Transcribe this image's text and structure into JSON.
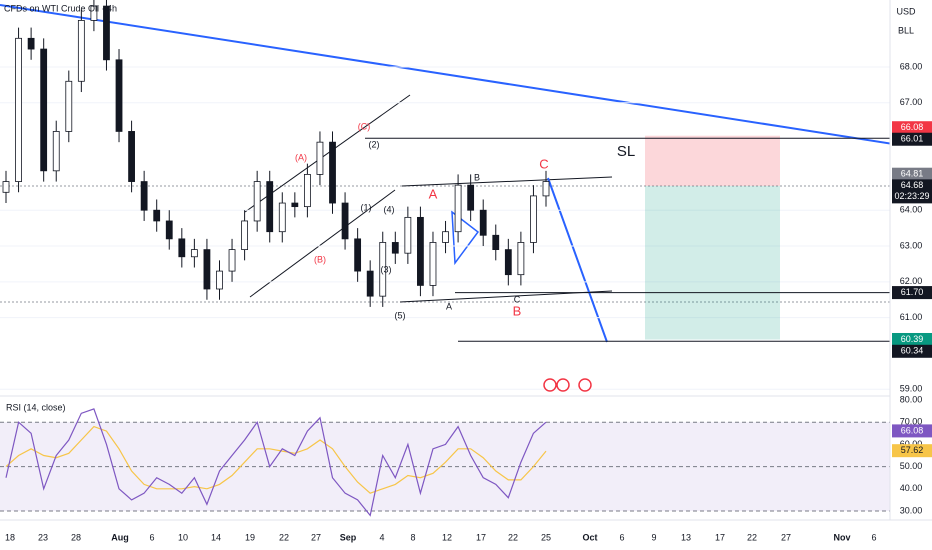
{
  "chart_data": [
    {
      "type": "candlestick",
      "title": "CFDs on WTI Crude Oil · 4h",
      "currency": "USD",
      "unit": "BLL",
      "open": [
        64.5,
        64.8,
        68.8,
        68.5,
        65.1,
        66.2,
        67.6,
        69.3,
        69.7,
        68.2,
        66.2,
        64.8,
        64.0,
        63.7,
        63.2,
        62.7,
        62.9,
        61.8,
        62.3,
        62.9,
        63.7,
        64.8,
        63.4,
        64.2,
        64.1,
        65.0,
        65.9,
        64.2,
        63.2,
        62.3,
        61.6,
        63.1,
        62.8,
        63.8,
        61.9,
        63.1,
        63.4,
        64.7,
        64.0,
        63.3,
        62.9,
        62.2,
        63.1,
        64.4
      ],
      "high": [
        65.1,
        69.1,
        69.1,
        68.8,
        66.5,
        67.9,
        69.6,
        70.0,
        70.0,
        68.5,
        66.5,
        65.1,
        64.3,
        64.0,
        63.5,
        63.2,
        63.2,
        62.6,
        63.2,
        64.0,
        65.1,
        65.1,
        64.5,
        64.5,
        65.3,
        66.2,
        66.2,
        64.5,
        63.5,
        62.6,
        63.4,
        63.4,
        64.1,
        64.1,
        63.4,
        63.7,
        65.0,
        65.0,
        64.3,
        63.6,
        63.2,
        63.4,
        64.7,
        65.1
      ],
      "low": [
        64.2,
        64.5,
        68.2,
        64.8,
        64.8,
        65.9,
        67.3,
        69.0,
        67.9,
        65.9,
        64.5,
        63.7,
        63.4,
        62.9,
        62.4,
        62.4,
        61.5,
        61.5,
        62.0,
        62.6,
        63.4,
        63.1,
        63.1,
        63.8,
        63.8,
        64.7,
        63.9,
        62.9,
        62.0,
        61.3,
        61.3,
        62.5,
        62.5,
        61.6,
        61.6,
        62.8,
        63.1,
        63.7,
        63.0,
        62.6,
        61.9,
        61.9,
        62.8,
        64.1
      ],
      "close": [
        64.8,
        68.8,
        68.5,
        65.1,
        66.2,
        67.6,
        69.3,
        69.7,
        68.2,
        66.2,
        64.8,
        64.0,
        63.7,
        63.2,
        62.7,
        62.9,
        61.8,
        62.3,
        62.9,
        63.7,
        64.8,
        63.4,
        64.2,
        64.1,
        65.0,
        65.9,
        64.2,
        63.2,
        62.3,
        61.6,
        63.1,
        62.8,
        63.8,
        61.9,
        63.1,
        63.4,
        64.7,
        64.0,
        63.3,
        62.9,
        62.2,
        63.1,
        64.4,
        64.8
      ],
      "color_up": "#ffffff",
      "color_down": "#131722",
      "ylim": [
        58.84,
        69.87
      ],
      "yticks": [
        {
          "value": 68,
          "label": "68.00"
        },
        {
          "value": 67,
          "label": "67.00"
        },
        {
          "value": 64,
          "label": "64.00"
        },
        {
          "value": 63,
          "label": "63.00"
        },
        {
          "value": 62,
          "label": "62.00"
        },
        {
          "value": 61,
          "label": "61.00"
        },
        {
          "value": 59,
          "label": "59.00"
        }
      ],
      "price_tags": [
        {
          "value": 66.08,
          "color": "#f23645"
        },
        {
          "value": 66.01,
          "color": "#131722"
        },
        {
          "value": 64.81,
          "color": "#787b86"
        },
        {
          "value": 64.68,
          "color": "#131722",
          "countdown": "02:23:29"
        },
        {
          "value": 61.7,
          "label": "61.70",
          "color": "#131722"
        },
        {
          "value": 60.39,
          "color": "#089981"
        },
        {
          "value": 60.34,
          "color": "#131722"
        }
      ],
      "annotations": [
        {
          "text": "(A)",
          "color": "#f23645"
        },
        {
          "text": "(B)",
          "color": "#f23645"
        },
        {
          "text": "(C)",
          "color": "#f23645"
        },
        {
          "text": "(1)",
          "color": "#131722"
        },
        {
          "text": "(2)",
          "color": "#131722"
        },
        {
          "text": "(3)",
          "color": "#131722"
        },
        {
          "text": "(4)",
          "color": "#131722"
        },
        {
          "text": "(5)",
          "color": "#131722"
        },
        {
          "text": "A",
          "color": "#f23645"
        },
        {
          "text": "B",
          "color": "#131722"
        },
        {
          "text": "A",
          "color": "#131722"
        },
        {
          "text": "C",
          "color": "#131722"
        },
        {
          "text": "B",
          "color": "#f23645"
        },
        {
          "text": "C",
          "color": "#f23645"
        },
        {
          "text": "SL",
          "color": "#131722"
        }
      ]
    },
    {
      "type": "line",
      "title": "RSI (14, close)",
      "series": [
        {
          "color": "#7e57c2",
          "values": [
            45,
            70,
            65,
            40,
            55,
            62,
            74,
            76,
            60,
            40,
            35,
            38,
            45,
            42,
            38,
            45,
            33,
            48,
            55,
            62,
            70,
            50,
            58,
            55,
            66,
            72,
            45,
            38,
            35,
            28,
            55,
            45,
            60,
            38,
            58,
            60,
            68,
            55,
            45,
            42,
            36,
            52,
            65,
            70
          ]
        },
        {
          "color": "#f7c548",
          "values": [
            50,
            55,
            58,
            55,
            54,
            56,
            62,
            68,
            66,
            58,
            48,
            42,
            40,
            40,
            40,
            41,
            40,
            42,
            46,
            52,
            58,
            58,
            57,
            56,
            58,
            62,
            58,
            50,
            43,
            38,
            40,
            42,
            46,
            45,
            47,
            52,
            58,
            58,
            54,
            48,
            44,
            44,
            50,
            57
          ]
        }
      ],
      "ylim": [
        28.2,
        80.9
      ],
      "yticks": [
        {
          "value": 80,
          "label": "80.00"
        },
        {
          "value": 70,
          "label": "70.00"
        },
        {
          "value": 60,
          "label": "60.00"
        },
        {
          "value": 50,
          "label": "50.00"
        },
        {
          "value": 40,
          "label": "40.00"
        },
        {
          "value": 30,
          "label": "30.00"
        }
      ],
      "price_tags": [
        {
          "value": 66.08,
          "color": "#7e57c2"
        },
        {
          "value": 57.62,
          "color": "#f7c548"
        }
      ]
    }
  ],
  "time_axis": {
    "labels": [
      "18",
      "23",
      "28",
      "Aug",
      "6",
      "10",
      "14",
      "19",
      "22",
      "27",
      "Sep",
      "4",
      "8",
      "12",
      "17",
      "22",
      "25",
      "Oct",
      "6",
      "9",
      "13",
      "17",
      "22",
      "27",
      "Nov",
      "6"
    ]
  }
}
